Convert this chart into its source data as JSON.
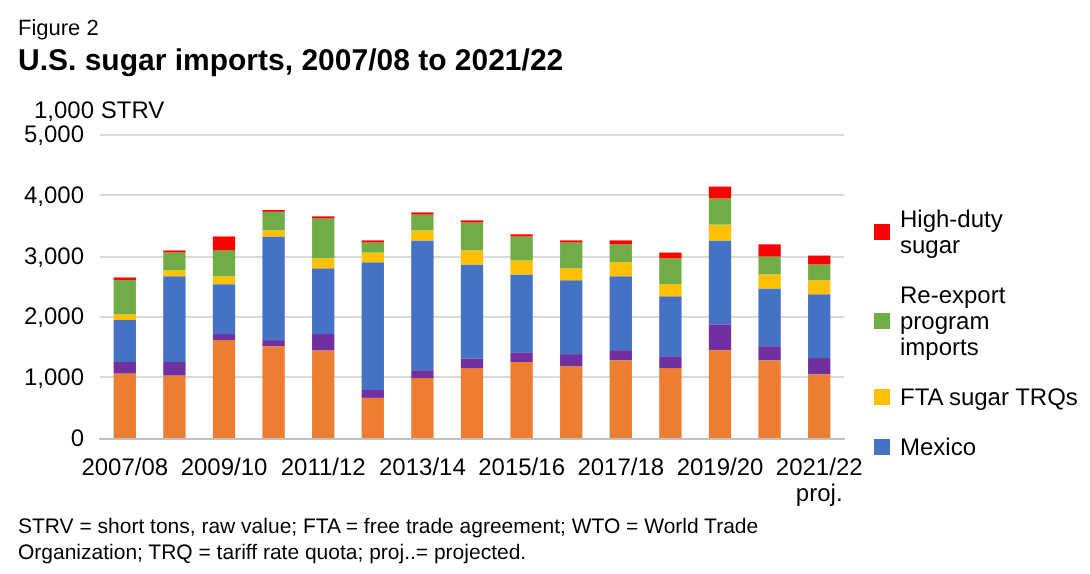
{
  "chart_data": {
    "type": "bar",
    "stacked": true,
    "subtitle": "Figure 2",
    "title": "U.S. sugar imports, 2007/08 to 2021/22",
    "ylabel": "1,000 STRV",
    "categories": [
      "2007/08",
      null,
      "2009/10",
      null,
      "2011/12",
      null,
      "2013/14",
      null,
      "2015/16",
      null,
      "2017/18",
      null,
      "2019/20",
      null,
      "2021/22\nproj."
    ],
    "series": [
      {
        "color": "#ed7d31",
        "values": [
          1060,
          1030,
          1610,
          1510,
          1440,
          660,
          985,
          1150,
          1250,
          1180,
          1280,
          1150,
          1445,
          1280,
          1050
        ]
      },
      {
        "color": "#7030a0",
        "values": [
          190,
          220,
          100,
          100,
          270,
          130,
          130,
          160,
          160,
          200,
          165,
          195,
          425,
          230,
          265
        ]
      },
      {
        "name": "Mexico",
        "color": "#4472c4",
        "values": [
          690,
          1410,
          820,
          1705,
          1080,
          2100,
          2135,
          1545,
          1280,
          1215,
          1215,
          985,
          1380,
          950,
          1050
        ]
      },
      {
        "name": "FTA sugar TRQs",
        "color": "#ffc000",
        "values": [
          95,
          100,
          130,
          100,
          165,
          160,
          165,
          230,
          230,
          195,
          230,
          200,
          260,
          230,
          230
        ]
      },
      {
        "name": "Re-export program imports",
        "color": "#70ad47",
        "values": [
          565,
          290,
          425,
          305,
          655,
          165,
          260,
          460,
          395,
          425,
          295,
          425,
          430,
          295,
          260
        ]
      },
      {
        "name": "High-duty sugar",
        "color": "#ff0000",
        "values": [
          40,
          35,
          230,
          30,
          35,
          35,
          35,
          35,
          35,
          35,
          65,
          95,
          195,
          200,
          145
        ]
      }
    ],
    "ylim": [
      0,
      5000
    ],
    "yticks": [
      {
        "value": 0,
        "label": "0"
      },
      {
        "value": 1000,
        "label": "1,000"
      },
      {
        "value": 2000,
        "label": "2,000"
      },
      {
        "value": 3000,
        "label": "3,000"
      },
      {
        "value": 4000,
        "label": "4,000"
      },
      {
        "value": 5000,
        "label": "5,000"
      }
    ],
    "grid": "y",
    "legend": "right",
    "annotations": [
      "STRV = short tons, raw value; FTA = free trade agreement; WTO = World Trade Organization; TRQ = tariff rate quota; proj..= projected."
    ]
  }
}
